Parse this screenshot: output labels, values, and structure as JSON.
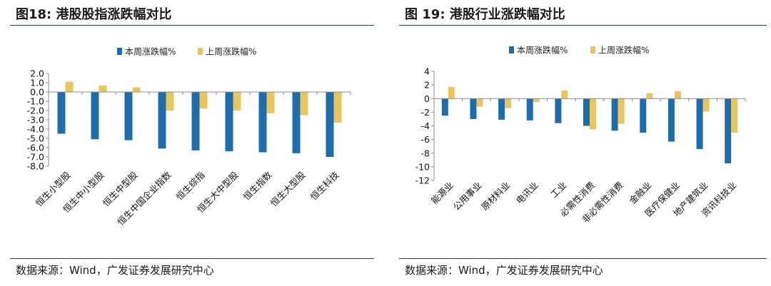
{
  "colors": {
    "series1": "#1f6cad",
    "series2": "#e8c55e",
    "axis": "#8c8c8c",
    "rule": "#1f3a64"
  },
  "source_text": "数据来源：Wind，广发证券发展研究中心",
  "left": {
    "title": "图18:  港股股指涨跌幅对比",
    "chart_data": {
      "type": "bar",
      "title": "港股股指涨跌幅对比",
      "categories": [
        "恒生小型股",
        "恒生中小型股",
        "恒生中型股",
        "恒生中国企业指数",
        "恒生综指",
        "恒生大中型股",
        "恒生指数",
        "恒生大型股",
        "恒生科技"
      ],
      "series": [
        {
          "name": "本周涨跌幅%",
          "values": [
            -4.5,
            -5.1,
            -5.2,
            -6.1,
            -6.3,
            -6.4,
            -6.5,
            -6.6,
            -7.0
          ]
        },
        {
          "name": "上周涨跌幅%",
          "values": [
            1.1,
            0.7,
            0.5,
            -2.0,
            -1.8,
            -2.0,
            -2.3,
            -2.5,
            -3.3
          ]
        }
      ],
      "ylim": [
        -8.0,
        2.0
      ],
      "yticks": [
        "2.0",
        "1.0",
        "0.0",
        "-1.0",
        "-2.0",
        "-3.0",
        "-4.0",
        "-5.0",
        "-6.0",
        "-7.0",
        "-8.0"
      ],
      "xlabel": "",
      "ylabel": "",
      "legend": "top-center"
    }
  },
  "right": {
    "title": "图 19:  港股行业涨跌幅对比",
    "chart_data": {
      "type": "bar",
      "title": "港股行业涨跌幅对比",
      "categories": [
        "能源业",
        "公用事业",
        "原材料业",
        "电讯业",
        "工业",
        "必需性消费",
        "非必需性消费",
        "金融业",
        "医疗保健业",
        "地产建筑业",
        "资讯科技业"
      ],
      "series": [
        {
          "name": "本周涨跌幅%",
          "values": [
            -2.5,
            -3.0,
            -3.1,
            -3.2,
            -3.6,
            -4.0,
            -4.7,
            -5.0,
            -6.3,
            -7.4,
            -9.5
          ]
        },
        {
          "name": "上周涨跌幅%",
          "values": [
            1.7,
            -1.2,
            -1.4,
            -0.5,
            1.2,
            -4.5,
            -3.7,
            0.8,
            1.1,
            -1.9,
            -5.0
          ]
        }
      ],
      "ylim": [
        -12,
        4
      ],
      "yticks": [
        "4",
        "2",
        "0",
        "-2",
        "-4",
        "-6",
        "-8",
        "-10",
        "-12"
      ],
      "xlabel": "",
      "ylabel": "",
      "legend": "top-center"
    }
  }
}
